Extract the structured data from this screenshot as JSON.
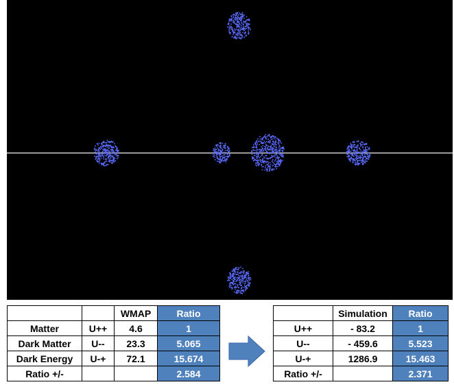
{
  "left_table": {
    "header": [
      "",
      "",
      "WMAP",
      "Ratio"
    ],
    "rows": [
      [
        "Matter",
        "U++",
        "4.6",
        "1"
      ],
      [
        "Dark Matter",
        "U--",
        "23.3",
        "5.065"
      ],
      [
        "Dark Energy",
        "U-+",
        "72.1",
        "15.674"
      ],
      [
        "Ratio +/-",
        "",
        "",
        "2.584"
      ]
    ]
  },
  "right_table": {
    "header": [
      "",
      "Simulation",
      "Ratio"
    ],
    "rows": [
      [
        "U++",
        "- 83.2",
        "1"
      ],
      [
        "U--",
        "- 459.6",
        "5.523"
      ],
      [
        "U-+",
        "1286.9",
        "15.463"
      ],
      [
        "Ratio +/-",
        "",
        "2.371"
      ]
    ]
  },
  "colors": {
    "background": "#000000",
    "particle": "#5a6cff",
    "axis_line": "#9a9a9a",
    "ratio_cell": "#4f81bd",
    "arrow": "#4f81bd"
  }
}
